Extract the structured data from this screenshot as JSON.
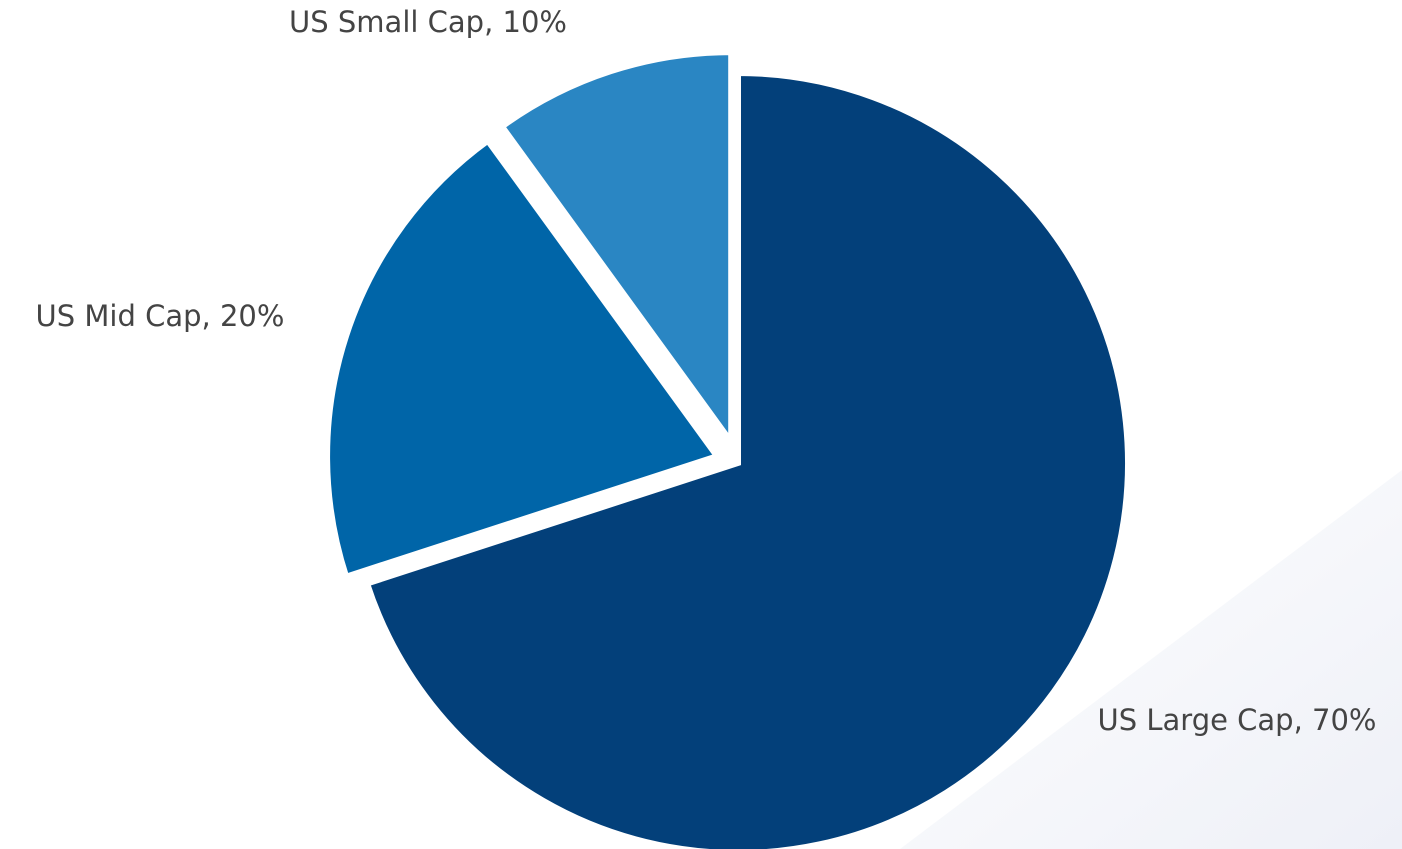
{
  "chart_data": {
    "type": "pie",
    "categories": [
      "US Large Cap, 70%",
      "US Mid Cap, 20%",
      "US Small Cap, 10%"
    ],
    "values": [
      70,
      20,
      10
    ],
    "colors": [
      "#03407a",
      "#0065a8",
      "#2a86c3"
    ]
  }
}
